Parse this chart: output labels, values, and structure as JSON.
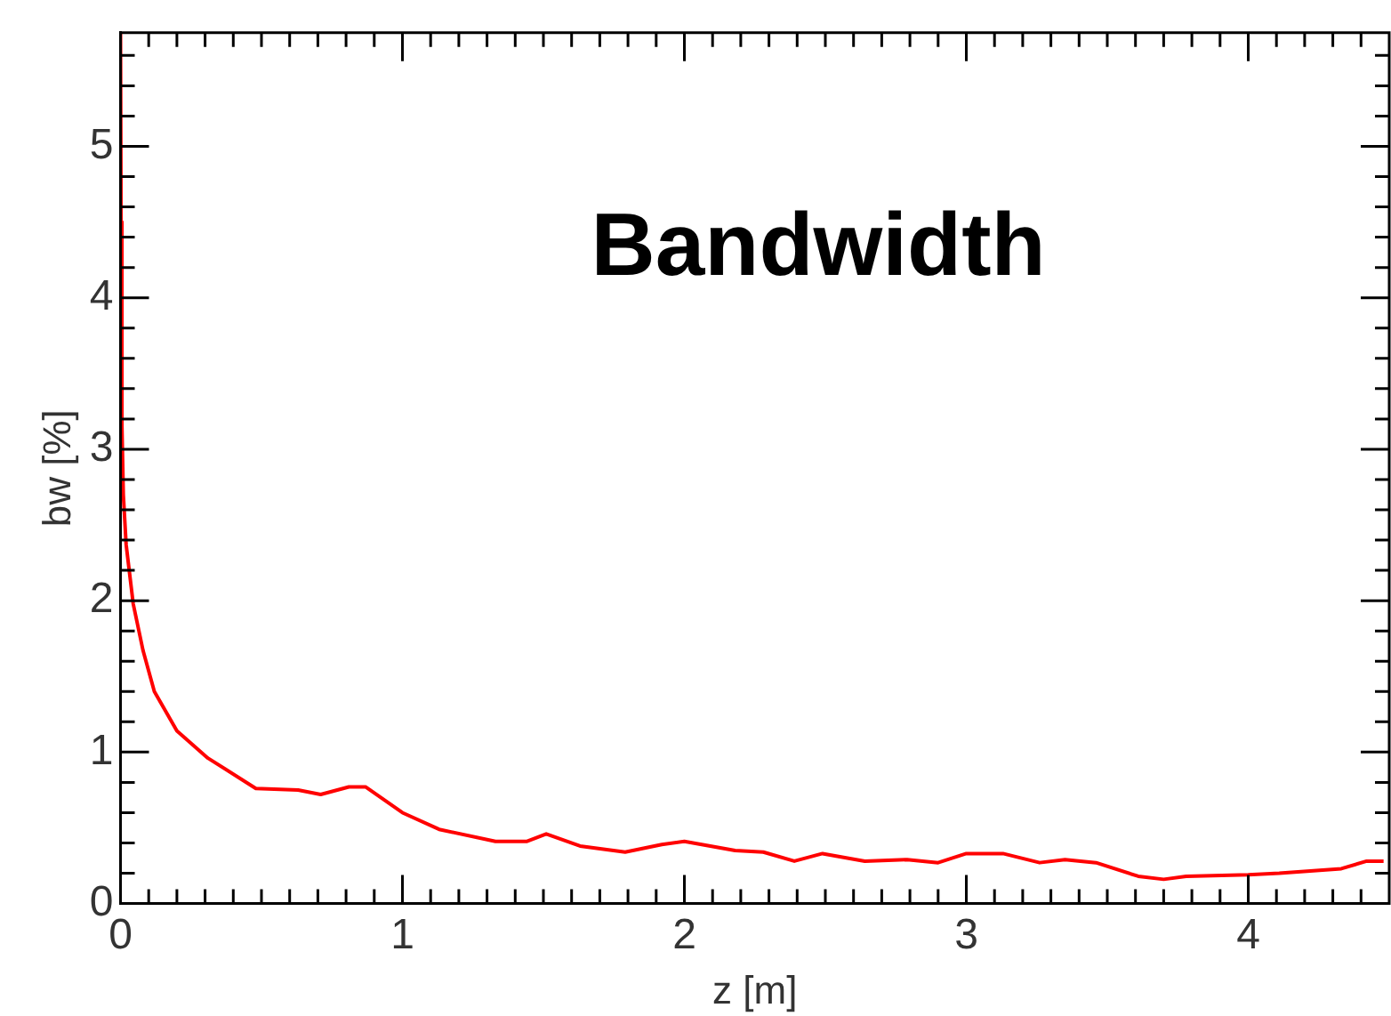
{
  "chart_data": {
    "type": "line",
    "title": "Bandwidth",
    "xlabel": "z [m]",
    "ylabel": "bw [%]",
    "series": [
      {
        "color": "#ff0000",
        "x": [
          0,
          0.002,
          0.005,
          0.01,
          0.02,
          0.045,
          0.08,
          0.12,
          0.2,
          0.31,
          0.48,
          0.63,
          0.71,
          0.81,
          0.87,
          1.0,
          1.13,
          1.33,
          1.44,
          1.51,
          1.63,
          1.79,
          1.92,
          2.0,
          2.18,
          2.28,
          2.39,
          2.49,
          2.64,
          2.79,
          2.9,
          3.0,
          3.13,
          3.26,
          3.35,
          3.46,
          3.61,
          3.7,
          3.78,
          4.0,
          4.11,
          4.33,
          4.42,
          4.48
        ],
        "values": [
          5.75,
          4.5,
          3.16,
          2.7,
          2.37,
          1.98,
          1.67,
          1.4,
          1.14,
          0.96,
          0.76,
          0.75,
          0.72,
          0.77,
          0.77,
          0.6,
          0.49,
          0.41,
          0.41,
          0.46,
          0.38,
          0.34,
          0.39,
          0.41,
          0.35,
          0.34,
          0.28,
          0.33,
          0.28,
          0.29,
          0.27,
          0.33,
          0.33,
          0.27,
          0.29,
          0.27,
          0.18,
          0.16,
          0.18,
          0.19,
          0.2,
          0.23,
          0.28,
          0.28
        ]
      }
    ],
    "xlim": [
      0,
      4.5
    ],
    "ylim": [
      0,
      5.75
    ],
    "marker": "none",
    "line_style": "solid",
    "xticks": [
      0,
      {
        "value": 0.1,
        "label": null
      },
      {
        "value": 0.2,
        "label": null
      },
      {
        "value": 0.3,
        "label": null
      },
      {
        "value": 0.4,
        "label": null
      },
      {
        "value": 0.5,
        "label": null
      },
      {
        "value": 0.6,
        "label": null
      },
      {
        "value": 0.7,
        "label": null
      },
      {
        "value": 0.8,
        "label": null
      },
      {
        "value": 0.9,
        "label": null
      },
      1,
      {
        "value": 1.1,
        "label": null
      },
      {
        "value": 1.2,
        "label": null
      },
      {
        "value": 1.3,
        "label": null
      },
      {
        "value": 1.4,
        "label": null
      },
      {
        "value": 1.5,
        "label": null
      },
      {
        "value": 1.6,
        "label": null
      },
      {
        "value": 1.7,
        "label": null
      },
      {
        "value": 1.8,
        "label": null
      },
      {
        "value": 1.9,
        "label": null
      },
      2,
      {
        "value": 2.1,
        "label": null
      },
      {
        "value": 2.2,
        "label": null
      },
      {
        "value": 2.3,
        "label": null
      },
      {
        "value": 2.4,
        "label": null
      },
      {
        "value": 2.5,
        "label": null
      },
      {
        "value": 2.6,
        "label": null
      },
      {
        "value": 2.7,
        "label": null
      },
      {
        "value": 2.8,
        "label": null
      },
      {
        "value": 2.9,
        "label": null
      },
      3,
      {
        "value": 3.1,
        "label": null
      },
      {
        "value": 3.2,
        "label": null
      },
      {
        "value": 3.3,
        "label": null
      },
      {
        "value": 3.4,
        "label": null
      },
      {
        "value": 3.5,
        "label": null
      },
      {
        "value": 3.6,
        "label": null
      },
      {
        "value": 3.7,
        "label": null
      },
      {
        "value": 3.8,
        "label": null
      },
      {
        "value": 3.9,
        "label": null
      },
      4,
      {
        "value": 4.1,
        "label": null
      },
      {
        "value": 4.2,
        "label": null
      },
      {
        "value": 4.3,
        "label": null
      },
      {
        "value": 4.4,
        "label": null
      }
    ],
    "yticks": [
      0,
      {
        "value": 0.2,
        "label": null
      },
      {
        "value": 0.4,
        "label": null
      },
      {
        "value": 0.6,
        "label": null
      },
      {
        "value": 0.8,
        "label": null
      },
      1,
      {
        "value": 1.2,
        "label": null
      },
      {
        "value": 1.4,
        "label": null
      },
      {
        "value": 1.6,
        "label": null
      },
      {
        "value": 1.8,
        "label": null
      },
      2,
      {
        "value": 2.2,
        "label": null
      },
      {
        "value": 2.4,
        "label": null
      },
      {
        "value": 2.6,
        "label": null
      },
      {
        "value": 2.8,
        "label": null
      },
      3,
      {
        "value": 3.2,
        "label": null
      },
      {
        "value": 3.4,
        "label": null
      },
      {
        "value": 3.6,
        "label": null
      },
      {
        "value": 3.8,
        "label": null
      },
      4,
      {
        "value": 4.2,
        "label": null
      },
      {
        "value": 4.4,
        "label": null
      },
      {
        "value": 4.6,
        "label": null
      },
      {
        "value": 4.8,
        "label": null
      },
      5,
      {
        "value": 5.2,
        "label": null
      },
      {
        "value": 5.4,
        "label": null
      },
      {
        "value": 5.6,
        "label": null
      }
    ]
  }
}
